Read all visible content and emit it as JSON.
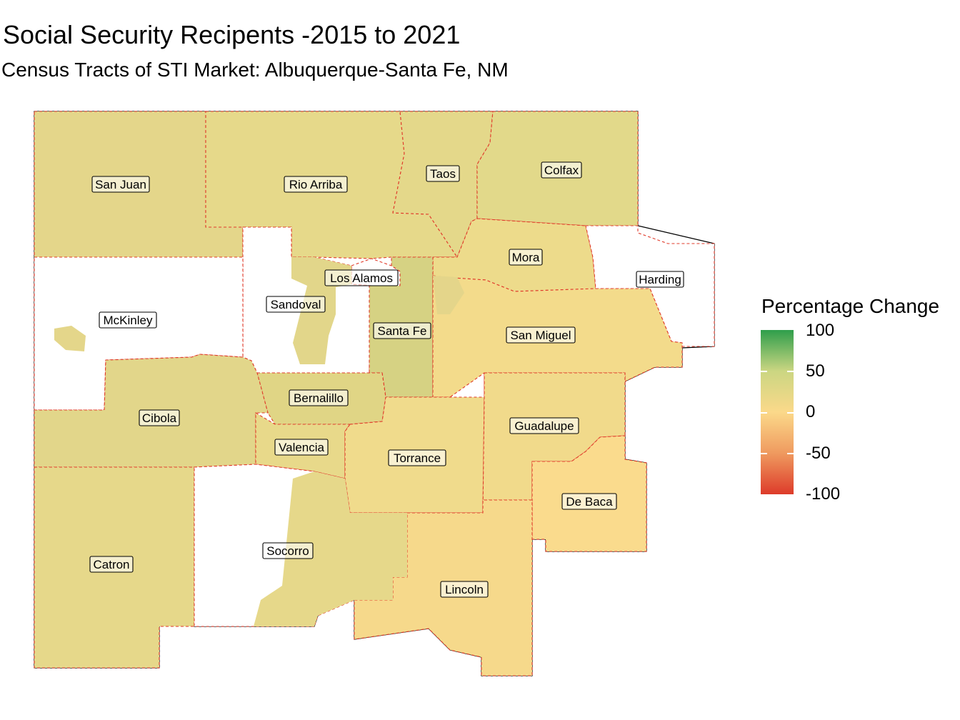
{
  "title": "Social Security Recipents -2015 to 2021",
  "subtitle": "Census Tracts of STI Market: Albuquerque-Santa Fe, NM",
  "legend": {
    "title": "Percentage Change",
    "ticks": [
      "100",
      "50",
      "0",
      "-50",
      "-100"
    ],
    "range": [
      -100,
      100
    ],
    "colors": {
      "high": "#2f9e4b",
      "mid_high": "#cbd682",
      "mid": "#fbd98a",
      "mid_low": "#ef9a5f",
      "low": "#dd3b2a"
    }
  },
  "counties": [
    {
      "name": "San Juan",
      "fill": "#e4d68a"
    },
    {
      "name": "Rio Arriba",
      "fill": "#e6d98a"
    },
    {
      "name": "Taos",
      "fill": "#e4d88a"
    },
    {
      "name": "Colfax",
      "fill": "#e2d98a"
    },
    {
      "name": "Mora",
      "fill": "#eddb8b"
    },
    {
      "name": "Harding",
      "fill": "#ffffff"
    },
    {
      "name": "Los Alamos",
      "fill": "#ffffff"
    },
    {
      "name": "Sandoval",
      "fill": "#ffffff"
    },
    {
      "name": "McKinley",
      "fill": "#ffffff"
    },
    {
      "name": "Santa Fe",
      "fill": "#d6d283"
    },
    {
      "name": "San Miguel",
      "fill": "#f3db8b"
    },
    {
      "name": "Bernalillo",
      "fill": "#e0d585"
    },
    {
      "name": "Cibola",
      "fill": "#e2d68a"
    },
    {
      "name": "Valencia",
      "fill": "#e8d98a"
    },
    {
      "name": "Torrance",
      "fill": "#f0db8c"
    },
    {
      "name": "Guadalupe",
      "fill": "#f1da8b"
    },
    {
      "name": "De Baca",
      "fill": "#fadb8d"
    },
    {
      "name": "Catron",
      "fill": "#e6d88a"
    },
    {
      "name": "Socorro",
      "fill": "#ffffff"
    },
    {
      "name": "Lincoln",
      "fill": "#f6d98b"
    }
  ]
}
